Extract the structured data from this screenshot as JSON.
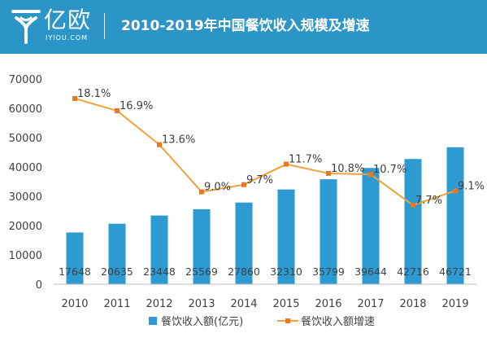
{
  "header": {
    "logo_cn": "亿欧",
    "logo_en": "IYIOU.COM",
    "title": "2010-2019年中国餐饮收入规模及增速"
  },
  "colors": {
    "header_bg": "#2c95c8",
    "bar": "#2e9ad2",
    "line": "#f0a236",
    "marker": "#e87722",
    "axis": "#bfbfbf",
    "text": "#404040"
  },
  "chart_data": {
    "type": "bar+line",
    "categories": [
      "2010",
      "2011",
      "2012",
      "2013",
      "2014",
      "2015",
      "2016",
      "2017",
      "2018",
      "2019"
    ],
    "series": [
      {
        "name": "餐饮收入额(亿元)",
        "type": "bar",
        "axis": "left",
        "values": [
          17648,
          20635,
          23448,
          25569,
          27860,
          32310,
          35799,
          39644,
          42716,
          46721
        ],
        "labels": [
          "17648",
          "20635",
          "23448",
          "25569",
          "27860",
          "32310",
          "35799",
          "39644",
          "42716",
          "46721"
        ]
      },
      {
        "name": "餐饮收入额增速",
        "type": "line",
        "axis": "right-hidden",
        "values": [
          18.1,
          16.9,
          13.6,
          9.0,
          9.7,
          11.7,
          10.8,
          10.7,
          7.7,
          9.1
        ],
        "labels": [
          "18.1%",
          "16.9%",
          "13.6%",
          "9.0%",
          "9.7%",
          "11.7%",
          "10.8%",
          "10.7%",
          "7.7%",
          "9.1%"
        ]
      }
    ],
    "ylim": [
      0,
      70000
    ],
    "yticks": [
      "0",
      "10000",
      "20000",
      "30000",
      "40000",
      "50000",
      "60000",
      "70000"
    ],
    "y2lim": [
      0,
      20
    ],
    "grid": false,
    "legend": "bottom"
  }
}
